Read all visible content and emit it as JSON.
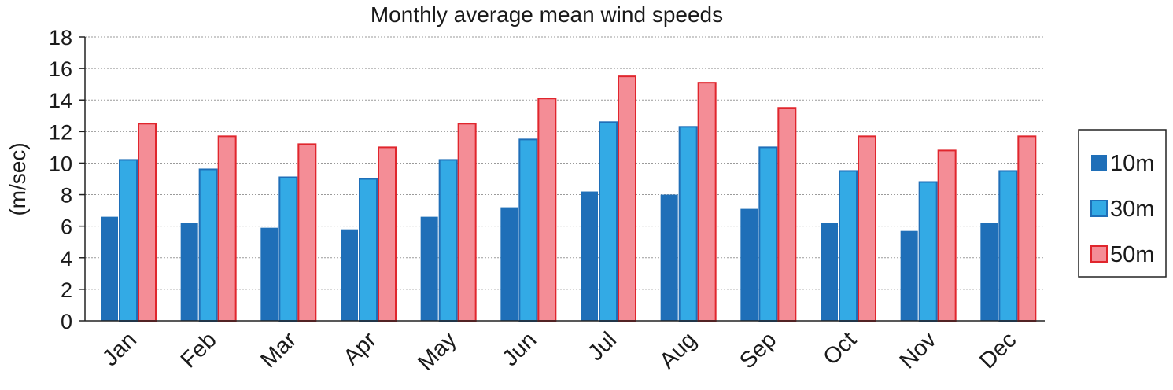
{
  "chart_data": {
    "type": "bar",
    "title": "Monthly average mean wind speeds",
    "xlabel": "",
    "ylabel": "(m/sec)",
    "ylim": [
      0,
      18
    ],
    "yticks": [
      "0",
      "2",
      "4",
      "6",
      "8",
      "10",
      "12",
      "14",
      "16",
      "18"
    ],
    "grid": true,
    "legend_position": "right",
    "categories": [
      "Jan",
      "Feb",
      "Mar",
      "Apr",
      "May",
      "Jun",
      "Jul",
      "Aug",
      "Sep",
      "Oct",
      "Nov",
      "Dec"
    ],
    "series": [
      {
        "name": "10m",
        "fill": "#1f6fb8",
        "stroke": "#1f6fb8",
        "values": [
          6.6,
          6.2,
          5.9,
          5.8,
          6.6,
          7.2,
          8.2,
          8.0,
          7.1,
          6.2,
          5.7,
          6.2
        ]
      },
      {
        "name": "30m",
        "fill": "#33aae5",
        "stroke": "#1f6fb8",
        "values": [
          10.2,
          9.6,
          9.1,
          9.0,
          10.2,
          11.5,
          12.6,
          12.3,
          11.0,
          9.5,
          8.8,
          9.5
        ]
      },
      {
        "name": "50m",
        "fill": "#f48d96",
        "stroke": "#e0262d",
        "values": [
          12.5,
          11.7,
          11.2,
          11.0,
          12.5,
          14.1,
          15.5,
          15.1,
          13.5,
          11.7,
          10.8,
          11.7
        ]
      }
    ]
  }
}
